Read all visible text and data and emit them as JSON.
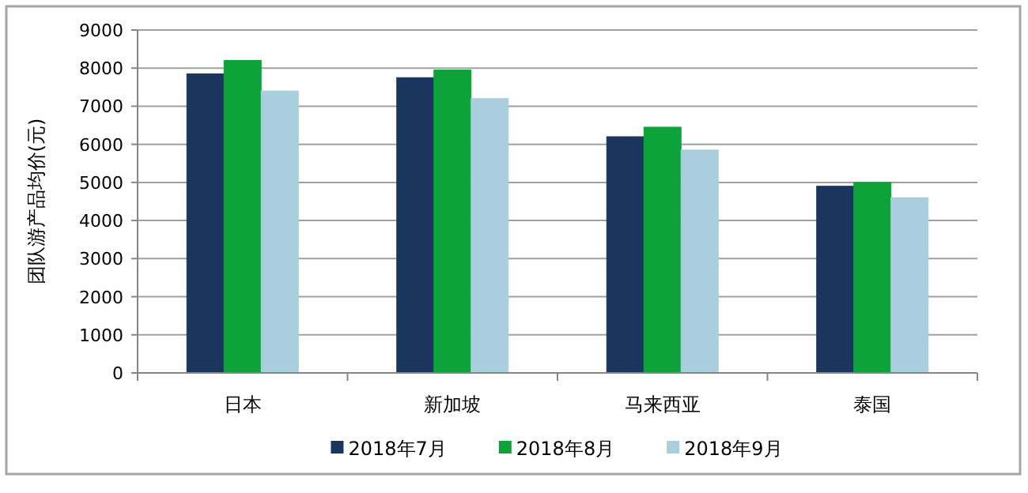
{
  "chart_data": {
    "type": "bar",
    "ylabel": "团队游产品均价(元)",
    "categories": [
      "日本",
      "新加坡",
      "马来西亚",
      "泰国"
    ],
    "series": [
      {
        "name": "2018年7月",
        "color": "#1a355e",
        "values": [
          7850,
          7750,
          6200,
          4900
        ]
      },
      {
        "name": "2018年8月",
        "color": "#0ea23a",
        "values": [
          8200,
          7950,
          6450,
          5000
        ]
      },
      {
        "name": "2018年9月",
        "color": "#a9cedd",
        "values": [
          7400,
          7200,
          5850,
          4600
        ]
      }
    ],
    "ylim": [
      0,
      9000
    ],
    "yticks": [
      0,
      1000,
      2000,
      3000,
      4000,
      5000,
      6000,
      7000,
      8000,
      9000
    ],
    "grid": "y",
    "legend": "bottom"
  }
}
